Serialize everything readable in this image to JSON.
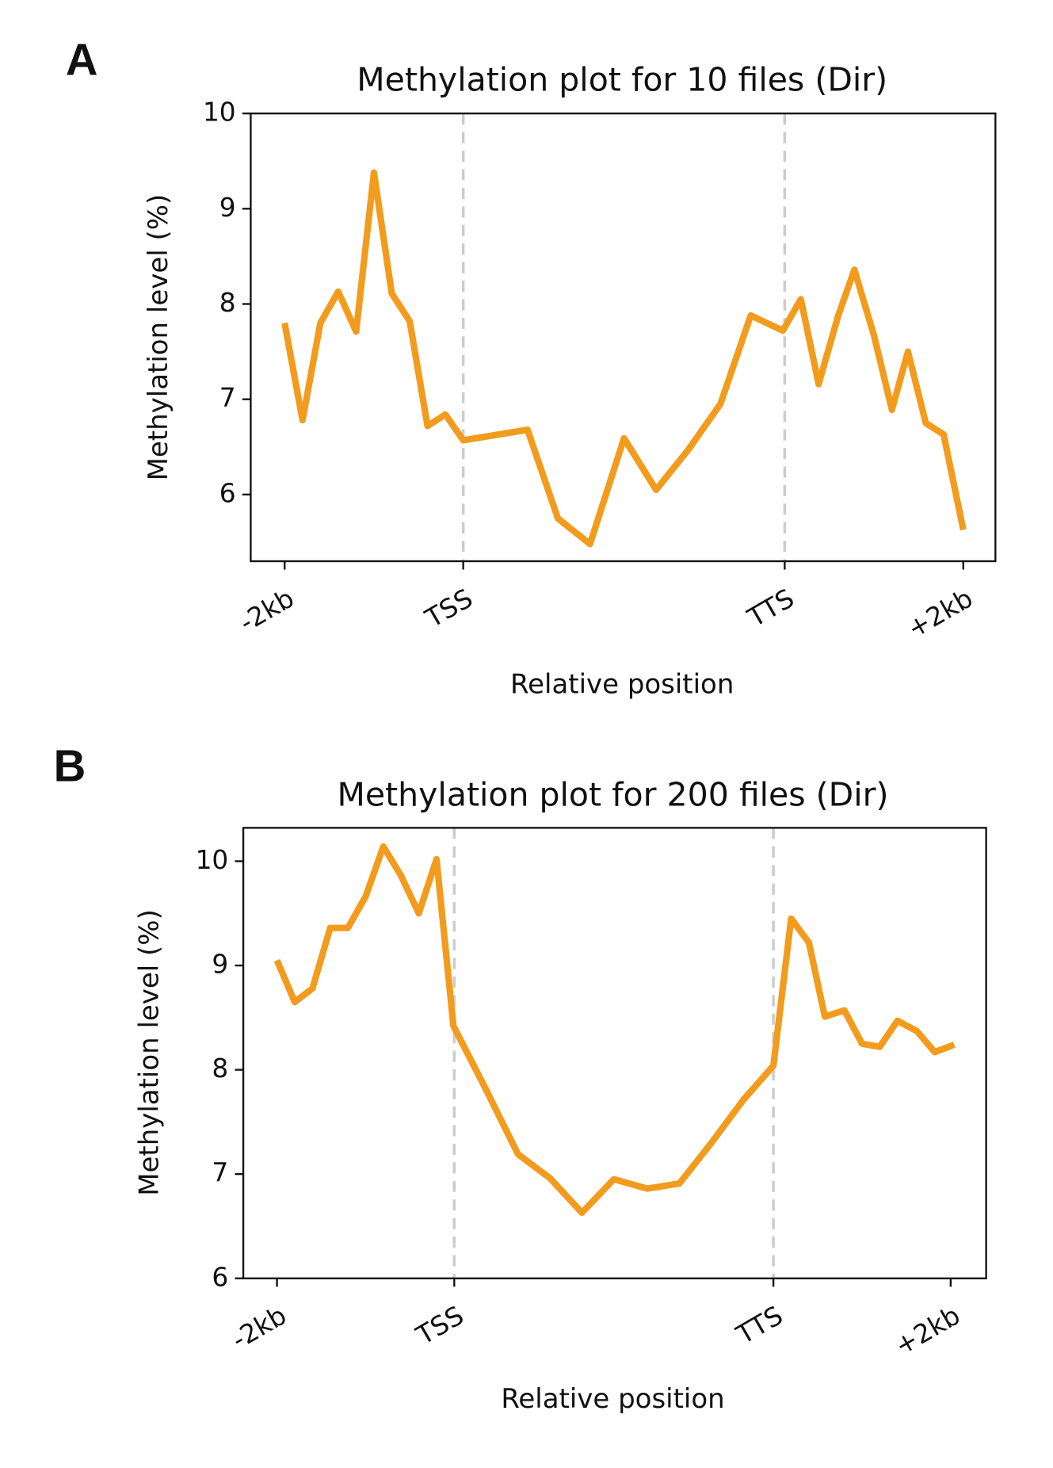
{
  "chart_data": [
    {
      "type": "line",
      "panel_label": "A",
      "title": "Methylation plot for 10 files (Dir)",
      "x_label": "Relative position",
      "y_label": "Methylation level (%)",
      "xlim": [
        -1.9,
        39.8
      ],
      "ylim": [
        5.3,
        10
      ],
      "xticks": [
        {
          "value": 0,
          "label": "-2kb"
        },
        {
          "value": 10,
          "label": "TSS"
        },
        {
          "value": 28,
          "label": "TTS"
        },
        {
          "value": 38,
          "label": "+2kb"
        }
      ],
      "yticks": [
        6,
        7,
        8,
        9,
        10
      ],
      "dashed_lines": [
        10,
        28
      ],
      "series": [
        {
          "color": "#f29b1d",
          "x": [
            0,
            1,
            2,
            3,
            4,
            5,
            6,
            7,
            8,
            9,
            10,
            13.6,
            15.3,
            17.1,
            19.0,
            20.8,
            22.6,
            24.4,
            26.1,
            27.9,
            28.9,
            29.9,
            31.0,
            31.9,
            33.0,
            34.0,
            34.9,
            35.9,
            36.9,
            38.0
          ],
          "values": [
            7.8,
            6.78,
            7.8,
            8.13,
            7.71,
            9.38,
            8.11,
            7.82,
            6.72,
            6.84,
            6.57,
            6.68,
            5.75,
            5.48,
            6.59,
            6.05,
            6.47,
            6.95,
            7.88,
            7.72,
            8.05,
            7.16,
            7.88,
            8.36,
            7.67,
            6.89,
            7.5,
            6.75,
            6.63,
            5.63
          ]
        }
      ]
    },
    {
      "type": "line",
      "panel_label": "B",
      "title": "Methylation plot for 200 files (Dir)",
      "x_label": "Relative position",
      "y_label": "Methylation level (%)",
      "xlim": [
        -1.9,
        40.0
      ],
      "ylim": [
        6,
        10.32
      ],
      "xticks": [
        {
          "value": 0,
          "label": "-2kb"
        },
        {
          "value": 10,
          "label": "TSS"
        },
        {
          "value": 28,
          "label": "TTS"
        },
        {
          "value": 38,
          "label": "+2kb"
        }
      ],
      "yticks": [
        6,
        7,
        8,
        9,
        10
      ],
      "dashed_lines": [
        10,
        28
      ],
      "series": [
        {
          "color": "#f29b1d",
          "x": [
            0,
            1,
            2,
            3,
            4,
            5,
            6,
            7,
            8,
            9,
            9.95,
            11.7,
            13.6,
            15.4,
            17.2,
            19.0,
            20.9,
            22.7,
            24.5,
            26.3,
            28,
            29.0,
            30.0,
            30.9,
            32.0,
            33.0,
            34.0,
            35.0,
            36.1,
            37.1,
            38.2
          ],
          "values": [
            9.05,
            8.65,
            8.78,
            9.36,
            9.36,
            9.66,
            10.14,
            9.86,
            9.5,
            10.02,
            8.42,
            7.84,
            7.19,
            6.96,
            6.63,
            6.95,
            6.86,
            6.91,
            7.3,
            7.71,
            8.04,
            9.45,
            9.22,
            8.51,
            8.57,
            8.25,
            8.22,
            8.47,
            8.37,
            8.17,
            8.24
          ]
        }
      ]
    }
  ]
}
